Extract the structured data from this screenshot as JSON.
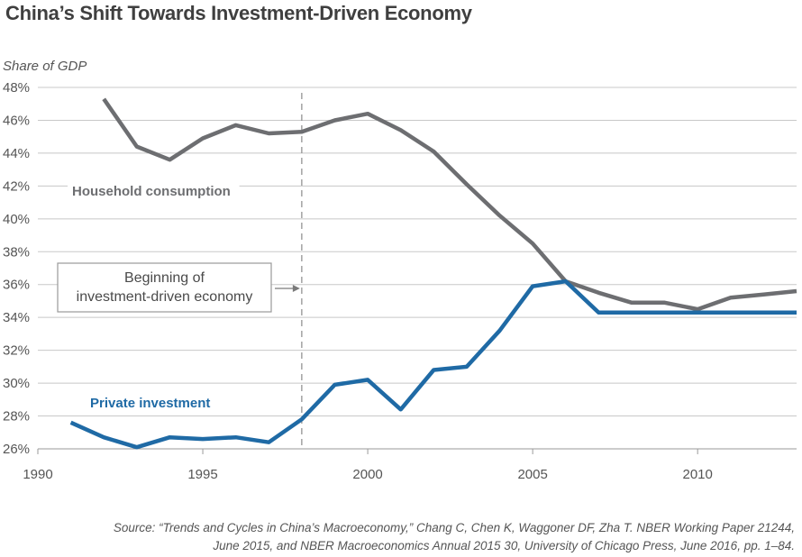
{
  "chart_data": {
    "type": "line",
    "title": "China’s Shift Towards Investment-Driven Economy",
    "ylabel": "Share of GDP",
    "xlabel": "",
    "xlim": [
      1990,
      2013
    ],
    "ylim": [
      26,
      48
    ],
    "x_ticks": [
      "1990",
      "1995",
      "2000",
      "2005",
      "2010"
    ],
    "y_ticks": [
      "26%",
      "28%",
      "30%",
      "32%",
      "34%",
      "36%",
      "38%",
      "40%",
      "42%",
      "44%",
      "46%",
      "48%"
    ],
    "grid": "horizontal",
    "series": [
      {
        "name": "Household consumption",
        "color": "#6d6e71",
        "x": [
          1992,
          1993,
          1994,
          1995,
          1996,
          1997,
          1998,
          1999,
          2000,
          2001,
          2002,
          2003,
          2004,
          2005,
          2006,
          2007,
          2008,
          2009,
          2010,
          2011,
          2012,
          2013
        ],
        "y": [
          47.3,
          44.4,
          43.6,
          44.9,
          45.7,
          45.2,
          45.3,
          46.0,
          46.4,
          45.4,
          44.1,
          42.1,
          40.2,
          38.5,
          36.2,
          35.5,
          34.9,
          34.9,
          34.5,
          35.2,
          35.4,
          35.6
        ]
      },
      {
        "name": "Private investment",
        "color": "#1f6aa5",
        "x": [
          1991,
          1992,
          1993,
          1994,
          1995,
          1996,
          1997,
          1998,
          1999,
          2000,
          2001,
          2002,
          2003,
          2004,
          2005,
          2006,
          2007,
          2008,
          2009,
          2010,
          2011,
          2012,
          2013
        ],
        "y": [
          27.6,
          26.7,
          26.1,
          26.7,
          26.6,
          26.7,
          26.4,
          27.8,
          29.9,
          30.2,
          28.4,
          30.8,
          31.0,
          33.2,
          35.9,
          36.2,
          34.3,
          34.3,
          34.3,
          34.3,
          34.3,
          34.3,
          34.3
        ]
      }
    ],
    "annotations": [
      {
        "text_lines": [
          "Beginning of",
          "investment-driven economy"
        ],
        "marker_x": 1998,
        "style": "dashed vertical line with boxed callout and arrow"
      }
    ],
    "source_lines": [
      "Source: “Trends and Cycles in China’s Macroeconomy,” Chang C, Chen K, Waggoner DF, Zha T. NBER Working Paper 21244,",
      "June 2015, and NBER Macroeconomics Annual 2015 30,  University of Chicago Press, June 2016, pp. 1–84."
    ]
  }
}
